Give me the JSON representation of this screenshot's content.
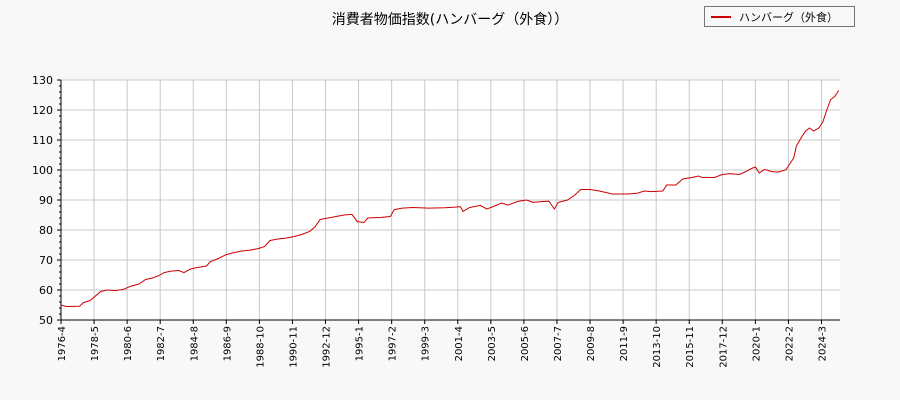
{
  "chart_data": {
    "type": "line",
    "title": "消費者物価指数(ハンバーグ（外食））",
    "xlabel": "",
    "ylabel": "",
    "ylim": [
      50,
      130
    ],
    "yticks": [
      50,
      60,
      70,
      80,
      90,
      100,
      110,
      120,
      130
    ],
    "xticks": [
      "1976-4",
      "1978-5",
      "1980-6",
      "1982-7",
      "1984-8",
      "1986-9",
      "1988-10",
      "1990-11",
      "1992-12",
      "1995-1",
      "1997-2",
      "1999-3",
      "2001-4",
      "2003-5",
      "2005-6",
      "2007-7",
      "2009-8",
      "2011-9",
      "2013-10",
      "2015-11",
      "2017-12",
      "2020-1",
      "2022-2",
      "2024-3"
    ],
    "grid": true,
    "legend_position": "top-right",
    "series": [
      {
        "name": "ハンバーグ（外食）",
        "color": "#cc0000",
        "points": [
          [
            "1976-4",
            55.0
          ],
          [
            "1976-8",
            54.5
          ],
          [
            "1977-6",
            54.6
          ],
          [
            "1977-9",
            55.8
          ],
          [
            "1978-2",
            56.5
          ],
          [
            "1978-6",
            58.0
          ],
          [
            "1978-10",
            59.5
          ],
          [
            "1979-3",
            60.0
          ],
          [
            "1979-9",
            59.8
          ],
          [
            "1980-3",
            60.2
          ],
          [
            "1980-9",
            61.3
          ],
          [
            "1981-3",
            62.0
          ],
          [
            "1981-8",
            63.5
          ],
          [
            "1982-1",
            64.0
          ],
          [
            "1982-6",
            64.8
          ],
          [
            "1982-10",
            65.8
          ],
          [
            "1983-3",
            66.3
          ],
          [
            "1983-9",
            66.5
          ],
          [
            "1984-1",
            65.8
          ],
          [
            "1984-6",
            67.0
          ],
          [
            "1984-11",
            67.5
          ],
          [
            "1985-6",
            68.0
          ],
          [
            "1985-9",
            69.5
          ],
          [
            "1986-3",
            70.5
          ],
          [
            "1986-9",
            71.8
          ],
          [
            "1987-3",
            72.5
          ],
          [
            "1987-9",
            73.0
          ],
          [
            "1988-3",
            73.3
          ],
          [
            "1988-9",
            73.8
          ],
          [
            "1989-2",
            74.5
          ],
          [
            "1989-6",
            76.5
          ],
          [
            "1989-12",
            77.0
          ],
          [
            "1990-6",
            77.3
          ],
          [
            "1990-12",
            77.8
          ],
          [
            "1991-6",
            78.5
          ],
          [
            "1991-12",
            79.5
          ],
          [
            "1992-4",
            81.0
          ],
          [
            "1992-8",
            83.5
          ],
          [
            "1993-2",
            84.0
          ],
          [
            "1993-8",
            84.5
          ],
          [
            "1994-2",
            85.0
          ],
          [
            "1994-8",
            85.2
          ],
          [
            "1994-12",
            82.8
          ],
          [
            "1995-5",
            82.5
          ],
          [
            "1995-8",
            84.0
          ],
          [
            "1996-6",
            84.2
          ],
          [
            "1997-1",
            84.5
          ],
          [
            "1997-4",
            86.8
          ],
          [
            "1997-10",
            87.3
          ],
          [
            "1998-6",
            87.5
          ],
          [
            "1999-6",
            87.3
          ],
          [
            "2000-6",
            87.4
          ],
          [
            "2001-1",
            87.6
          ],
          [
            "2001-6",
            87.8
          ],
          [
            "2001-8",
            86.2
          ],
          [
            "2002-1",
            87.5
          ],
          [
            "2002-9",
            88.2
          ],
          [
            "2003-2",
            87.0
          ],
          [
            "2003-8",
            88.0
          ],
          [
            "2004-1",
            89.0
          ],
          [
            "2004-6",
            88.3
          ],
          [
            "2005-1",
            89.5
          ],
          [
            "2005-8",
            90.0
          ],
          [
            "2006-1",
            89.2
          ],
          [
            "2006-8",
            89.5
          ],
          [
            "2007-1",
            89.6
          ],
          [
            "2007-5",
            87.0
          ],
          [
            "2007-8",
            89.2
          ],
          [
            "2008-3",
            90.0
          ],
          [
            "2008-8",
            91.5
          ],
          [
            "2009-1",
            93.5
          ],
          [
            "2009-8",
            93.5
          ],
          [
            "2010-3",
            93.0
          ],
          [
            "2010-8",
            92.5
          ],
          [
            "2011-1",
            92.0
          ],
          [
            "2012-1",
            92.0
          ],
          [
            "2012-8",
            92.3
          ],
          [
            "2013-1",
            93.0
          ],
          [
            "2013-6",
            92.8
          ],
          [
            "2014-3",
            93.0
          ],
          [
            "2014-6",
            95.0
          ],
          [
            "2015-1",
            95.0
          ],
          [
            "2015-6",
            97.0
          ],
          [
            "2016-1",
            97.5
          ],
          [
            "2016-6",
            98.0
          ],
          [
            "2016-9",
            97.5
          ],
          [
            "2017-6",
            97.5
          ],
          [
            "2017-12",
            98.5
          ],
          [
            "2018-6",
            98.8
          ],
          [
            "2019-1",
            98.5
          ],
          [
            "2019-6",
            99.5
          ],
          [
            "2019-10",
            100.5
          ],
          [
            "2020-1",
            101.0
          ],
          [
            "2020-4",
            99.0
          ],
          [
            "2020-8",
            100.2
          ],
          [
            "2021-1",
            99.5
          ],
          [
            "2021-6",
            99.3
          ],
          [
            "2021-12",
            100.0
          ],
          [
            "2022-3",
            102.0
          ],
          [
            "2022-6",
            104.0
          ],
          [
            "2022-8",
            108.0
          ],
          [
            "2022-12",
            111.0
          ],
          [
            "2023-3",
            113.0
          ],
          [
            "2023-6",
            114.0
          ],
          [
            "2023-9",
            113.0
          ],
          [
            "2024-1",
            114.0
          ],
          [
            "2024-4",
            116.0
          ],
          [
            "2024-7",
            120.0
          ],
          [
            "2024-10",
            123.5
          ],
          [
            "2025-1",
            124.5
          ],
          [
            "2025-4",
            126.5
          ]
        ]
      }
    ]
  }
}
